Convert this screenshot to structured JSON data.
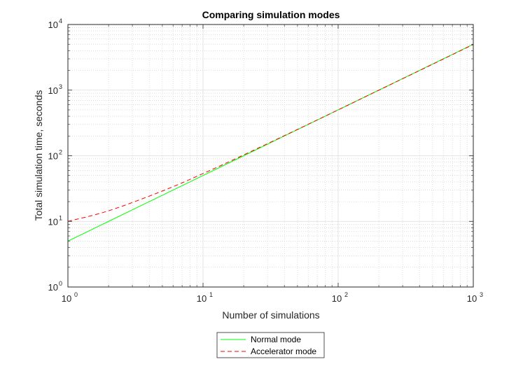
{
  "chart_data": {
    "type": "line",
    "title": "Comparing simulation modes",
    "xlabel": "Number of simulations",
    "ylabel": "Total simulation time, seconds",
    "xscale": "log",
    "yscale": "log",
    "xlim": [
      1,
      1000
    ],
    "ylim": [
      1,
      10000
    ],
    "grid": true,
    "minor_grid": true,
    "x_ticks": [
      {
        "base": "10",
        "exp": "0",
        "value": 1
      },
      {
        "base": "10",
        "exp": "1",
        "value": 10
      },
      {
        "base": "10",
        "exp": "2",
        "value": 100
      },
      {
        "base": "10",
        "exp": "3",
        "value": 1000
      }
    ],
    "y_ticks": [
      {
        "base": "10",
        "exp": "0",
        "value": 1
      },
      {
        "base": "10",
        "exp": "1",
        "value": 10
      },
      {
        "base": "10",
        "exp": "2",
        "value": 100
      },
      {
        "base": "10",
        "exp": "3",
        "value": 1000
      },
      {
        "base": "10",
        "exp": "4",
        "value": 10000
      }
    ],
    "legend_position": "below",
    "series": [
      {
        "name": "Normal mode",
        "color": "#00ff00",
        "style": "solid",
        "x": [
          1,
          2,
          5,
          10,
          20,
          50,
          100,
          200,
          500,
          1000
        ],
        "y": [
          5,
          10,
          25,
          50,
          100,
          250,
          500,
          1000,
          2500,
          5000
        ]
      },
      {
        "name": "Accelerator mode",
        "color": "#ff0000",
        "style": "dashed",
        "x": [
          1,
          2,
          5,
          10,
          20,
          50,
          100,
          200,
          500,
          1000
        ],
        "y": [
          10,
          14.5,
          29,
          53.5,
          103,
          252,
          500,
          997,
          2480,
          4960
        ]
      }
    ]
  }
}
